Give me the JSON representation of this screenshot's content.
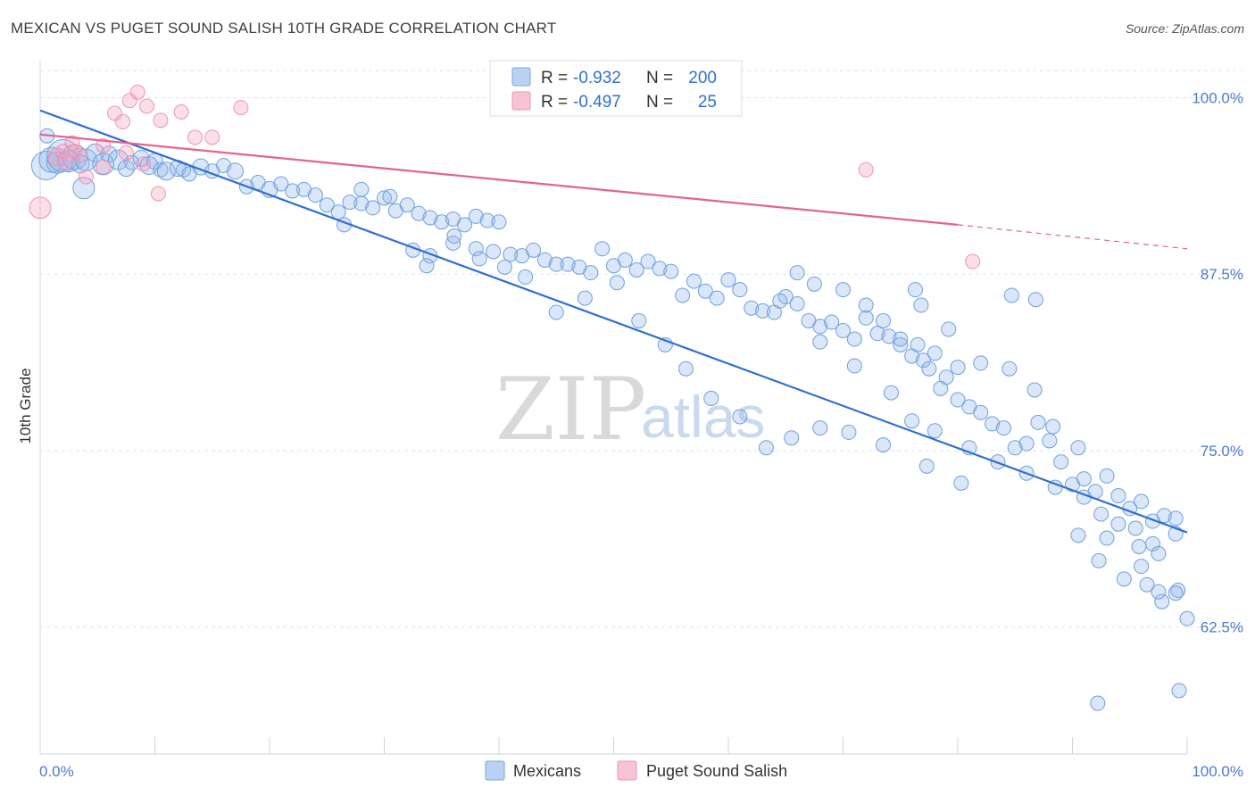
{
  "title": "MEXICAN VS PUGET SOUND SALISH 10TH GRADE CORRELATION CHART",
  "source": "Source: ZipAtlas.com",
  "watermark": {
    "zip": "ZIP",
    "atlas": "atlas"
  },
  "colors": {
    "blue": "#6f9fe0",
    "blue_line": "#2e6fd3",
    "pink": "#f28fb0",
    "pink_line": "#e5638f",
    "grid": "#dde3ea"
  },
  "legend": {
    "rows": [
      {
        "r_label": "R =",
        "r_value": "-0.932",
        "n_label": "N =",
        "n_value": "200"
      },
      {
        "r_label": "R =",
        "r_value": "-0.497",
        "n_label": "N =",
        "n_value": "25"
      }
    ]
  },
  "bottom_legend": [
    "Mexicans",
    "Puget Sound Salish"
  ],
  "chart_data": {
    "type": "scatter",
    "ylabel": "10th Grade",
    "xlim": [
      0,
      100
    ],
    "ylim": [
      53.5,
      102.5
    ],
    "x_tick_labels": {
      "left": "0.0%",
      "right": "100.0%"
    },
    "y_ticks": [
      {
        "value": 100.0,
        "label": "100.0%"
      },
      {
        "value": 87.5,
        "label": "87.5%"
      },
      {
        "value": 75.0,
        "label": "75.0%"
      },
      {
        "value": 62.5,
        "label": "62.5%"
      }
    ],
    "series": [
      {
        "name": "Mexicans",
        "r": -0.932,
        "n": 200,
        "trend": {
          "x0": 0,
          "y0": 99.1,
          "x1": 100,
          "y1": 69.2
        },
        "points": [
          [
            0.5,
            95.2,
            16
          ],
          [
            1,
            95.6,
            14
          ],
          [
            1.5,
            95.4,
            12
          ],
          [
            2,
            95.9,
            18
          ],
          [
            2.5,
            95.5,
            12
          ],
          [
            3,
            95.8,
            14
          ],
          [
            3.5,
            95.3,
            10
          ],
          [
            4,
            95.6,
            12
          ],
          [
            4.8,
            96.1,
            10
          ],
          [
            5.5,
            95.3,
            12
          ],
          [
            6,
            96.0,
            9
          ],
          [
            6.8,
            95.6,
            11
          ],
          [
            7.5,
            95.0,
            9
          ],
          [
            8,
            95.4,
            8
          ],
          [
            8.8,
            95.7,
            9
          ],
          [
            9.5,
            95.2,
            10
          ],
          [
            10,
            95.5,
            9
          ],
          [
            10.5,
            94.9,
            8
          ],
          [
            11,
            94.8,
            10
          ],
          [
            12,
            95.0,
            9
          ],
          [
            12.5,
            94.9,
            8
          ],
          [
            13,
            94.6,
            8
          ],
          [
            14,
            95.1,
            9
          ],
          [
            15,
            94.8,
            8
          ],
          [
            16,
            95.2,
            8
          ],
          [
            17,
            94.8,
            9
          ],
          [
            18,
            93.7,
            8
          ],
          [
            19,
            94.0,
            8
          ],
          [
            20,
            93.5,
            9
          ],
          [
            21,
            93.9,
            8
          ],
          [
            22,
            93.4,
            8
          ],
          [
            23,
            93.5,
            8
          ],
          [
            24,
            93.1,
            8
          ],
          [
            25,
            92.4,
            8
          ],
          [
            26,
            91.9,
            8
          ],
          [
            27,
            92.6,
            8
          ],
          [
            28,
            92.5,
            8
          ],
          [
            29,
            92.2,
            8
          ],
          [
            30,
            92.9,
            8
          ],
          [
            31,
            92.0,
            8
          ],
          [
            32,
            92.4,
            8
          ],
          [
            33,
            91.8,
            8
          ],
          [
            34,
            91.5,
            8
          ],
          [
            35,
            91.2,
            8
          ],
          [
            36,
            91.4,
            8
          ],
          [
            37,
            91.0,
            8
          ],
          [
            38,
            91.6,
            8
          ],
          [
            39,
            91.3,
            8
          ],
          [
            40,
            91.2,
            8
          ],
          [
            0.6,
            97.3,
            8
          ],
          [
            3.8,
            93.6,
            12
          ],
          [
            26.5,
            91.0,
            8
          ],
          [
            28,
            93.5,
            8
          ],
          [
            30.5,
            93.0,
            8
          ],
          [
            32.5,
            89.2,
            8
          ],
          [
            34,
            88.8,
            8
          ],
          [
            36,
            89.7,
            8
          ],
          [
            38,
            89.3,
            8
          ],
          [
            39.5,
            89.1,
            8
          ],
          [
            41,
            88.9,
            8
          ],
          [
            42,
            88.8,
            8
          ],
          [
            43,
            89.2,
            8
          ],
          [
            44,
            88.5,
            8
          ],
          [
            45,
            88.2,
            8
          ],
          [
            46,
            88.2,
            8
          ],
          [
            47,
            88.0,
            8
          ],
          [
            48,
            87.6,
            8
          ],
          [
            49,
            89.3,
            8
          ],
          [
            50,
            88.1,
            8
          ],
          [
            51,
            88.5,
            8
          ],
          [
            52,
            87.8,
            8
          ],
          [
            53,
            88.4,
            8
          ],
          [
            54,
            87.9,
            8
          ],
          [
            55,
            87.7,
            8
          ],
          [
            56,
            86.0,
            8
          ],
          [
            57,
            87.0,
            8
          ],
          [
            58,
            86.3,
            8
          ],
          [
            59,
            85.8,
            8
          ],
          [
            60,
            87.1,
            8
          ],
          [
            61,
            86.4,
            8
          ],
          [
            62,
            85.1,
            8
          ],
          [
            63,
            84.9,
            8
          ],
          [
            64,
            84.8,
            8
          ],
          [
            65,
            85.9,
            8
          ],
          [
            66,
            85.4,
            8
          ],
          [
            67,
            84.2,
            8
          ],
          [
            68,
            83.8,
            8
          ],
          [
            69,
            84.1,
            8
          ],
          [
            70,
            83.5,
            8
          ],
          [
            71,
            82.9,
            8
          ],
          [
            72,
            84.4,
            8
          ],
          [
            73,
            83.3,
            8
          ],
          [
            74,
            83.1,
            8
          ],
          [
            75,
            82.5,
            8
          ],
          [
            76,
            81.7,
            8
          ],
          [
            77,
            81.4,
            8
          ],
          [
            78,
            81.9,
            8
          ],
          [
            79,
            80.2,
            8
          ],
          [
            80,
            80.9,
            8
          ],
          [
            66,
            87.6,
            8
          ],
          [
            67.5,
            86.8,
            8
          ],
          [
            70,
            86.4,
            8
          ],
          [
            72,
            85.3,
            8
          ],
          [
            73.5,
            84.2,
            8
          ],
          [
            75,
            82.9,
            8
          ],
          [
            76.5,
            82.5,
            8
          ],
          [
            77.5,
            80.8,
            8
          ],
          [
            78.5,
            79.4,
            8
          ],
          [
            80,
            78.6,
            8
          ],
          [
            81,
            78.1,
            8
          ],
          [
            82,
            77.7,
            8
          ],
          [
            83,
            76.9,
            8
          ],
          [
            84,
            76.6,
            8
          ],
          [
            85,
            75.2,
            8
          ],
          [
            86,
            75.5,
            8
          ],
          [
            87,
            77.0,
            8
          ],
          [
            88,
            75.7,
            8
          ],
          [
            89,
            74.2,
            8
          ],
          [
            90,
            72.6,
            8
          ],
          [
            91,
            73.0,
            8
          ],
          [
            92,
            72.1,
            8
          ],
          [
            93,
            73.2,
            8
          ],
          [
            94,
            71.8,
            8
          ],
          [
            95,
            70.9,
            8
          ],
          [
            96,
            71.4,
            8
          ],
          [
            97,
            70.0,
            8
          ],
          [
            98,
            70.4,
            8
          ],
          [
            99,
            70.2,
            8
          ],
          [
            64.5,
            85.6,
            8
          ],
          [
            68,
            82.7,
            8
          ],
          [
            71,
            81.0,
            8
          ],
          [
            74.2,
            79.1,
            8
          ],
          [
            76,
            77.1,
            8
          ],
          [
            78,
            76.4,
            8
          ],
          [
            81,
            75.2,
            8
          ],
          [
            83.5,
            74.2,
            8
          ],
          [
            86,
            73.4,
            8
          ],
          [
            88.5,
            72.4,
            8
          ],
          [
            91,
            71.7,
            8
          ],
          [
            92.5,
            70.5,
            8
          ],
          [
            94,
            69.8,
            8
          ],
          [
            95.5,
            69.5,
            8
          ],
          [
            97,
            68.4,
            8
          ],
          [
            99,
            69.1,
            8
          ],
          [
            95.8,
            68.2,
            8
          ],
          [
            97.5,
            67.7,
            8
          ],
          [
            90.5,
            69.0,
            8
          ],
          [
            93,
            68.8,
            8
          ],
          [
            96,
            66.8,
            8
          ],
          [
            97.8,
            64.3,
            8
          ],
          [
            99.2,
            65.1,
            8
          ],
          [
            100,
            63.1,
            8
          ],
          [
            92.3,
            67.2,
            8
          ],
          [
            94.5,
            65.9,
            8
          ],
          [
            96.5,
            65.5,
            8
          ],
          [
            92.2,
            57.1,
            8
          ],
          [
            99.3,
            58.0,
            8
          ],
          [
            97.5,
            65.0,
            8
          ],
          [
            99.0,
            64.9,
            8
          ],
          [
            76.8,
            85.3,
            8
          ],
          [
            79.2,
            83.6,
            8
          ],
          [
            82,
            81.2,
            8
          ],
          [
            84.5,
            80.8,
            8
          ],
          [
            86.7,
            79.3,
            8
          ],
          [
            88.3,
            76.7,
            8
          ],
          [
            90.5,
            75.2,
            8
          ],
          [
            86.8,
            85.7,
            8
          ],
          [
            84.7,
            86.0,
            8
          ],
          [
            76.3,
            86.4,
            8
          ],
          [
            80.3,
            72.7,
            8
          ],
          [
            77.3,
            73.9,
            8
          ],
          [
            73.5,
            75.4,
            8
          ],
          [
            70.5,
            76.3,
            8
          ],
          [
            68.0,
            76.6,
            8
          ],
          [
            65.5,
            75.9,
            8
          ],
          [
            63.3,
            75.2,
            8
          ],
          [
            61.0,
            77.4,
            8
          ],
          [
            58.5,
            78.7,
            8
          ],
          [
            56.3,
            80.8,
            8
          ],
          [
            54.5,
            82.5,
            8
          ],
          [
            52.2,
            84.2,
            8
          ],
          [
            50.3,
            86.9,
            8
          ],
          [
            47.5,
            85.8,
            8
          ],
          [
            45.0,
            84.8,
            8
          ],
          [
            42.3,
            87.3,
            8
          ],
          [
            40.5,
            88.0,
            8
          ],
          [
            38.3,
            88.6,
            8
          ],
          [
            36.1,
            90.2,
            8
          ],
          [
            33.7,
            88.1,
            8
          ]
        ]
      },
      {
        "name": "Puget Sound Salish",
        "r": -0.497,
        "n": 25,
        "trend": {
          "x0": 0,
          "y0": 97.4,
          "x1": 80,
          "y1": 91.0,
          "dash_to_x": 100,
          "dash_to_y": 89.3
        },
        "points": [
          [
            0,
            92.2,
            12
          ],
          [
            1.5,
            95.8,
            10
          ],
          [
            2,
            96.2,
            8
          ],
          [
            2.2,
            95.5,
            9
          ],
          [
            2.8,
            96.8,
            8
          ],
          [
            3,
            96.2,
            8
          ],
          [
            3.5,
            95.9,
            8
          ],
          [
            4,
            94.4,
            8
          ],
          [
            5.5,
            95.1,
            8
          ],
          [
            6.5,
            98.9,
            8
          ],
          [
            7.2,
            98.3,
            8
          ],
          [
            7.8,
            99.8,
            8
          ],
          [
            8.5,
            100.4,
            8
          ],
          [
            9.3,
            99.4,
            8
          ],
          [
            10.5,
            98.4,
            8
          ],
          [
            12.3,
            99.0,
            8
          ],
          [
            13.5,
            97.2,
            8
          ],
          [
            15.0,
            97.2,
            8
          ],
          [
            17.5,
            99.3,
            8
          ],
          [
            9.0,
            95.3,
            8
          ],
          [
            7.5,
            96.1,
            8
          ],
          [
            5.5,
            96.6,
            8
          ],
          [
            10.3,
            93.2,
            8
          ],
          [
            72.0,
            94.9,
            8
          ],
          [
            81.3,
            88.4,
            8
          ]
        ]
      }
    ]
  }
}
